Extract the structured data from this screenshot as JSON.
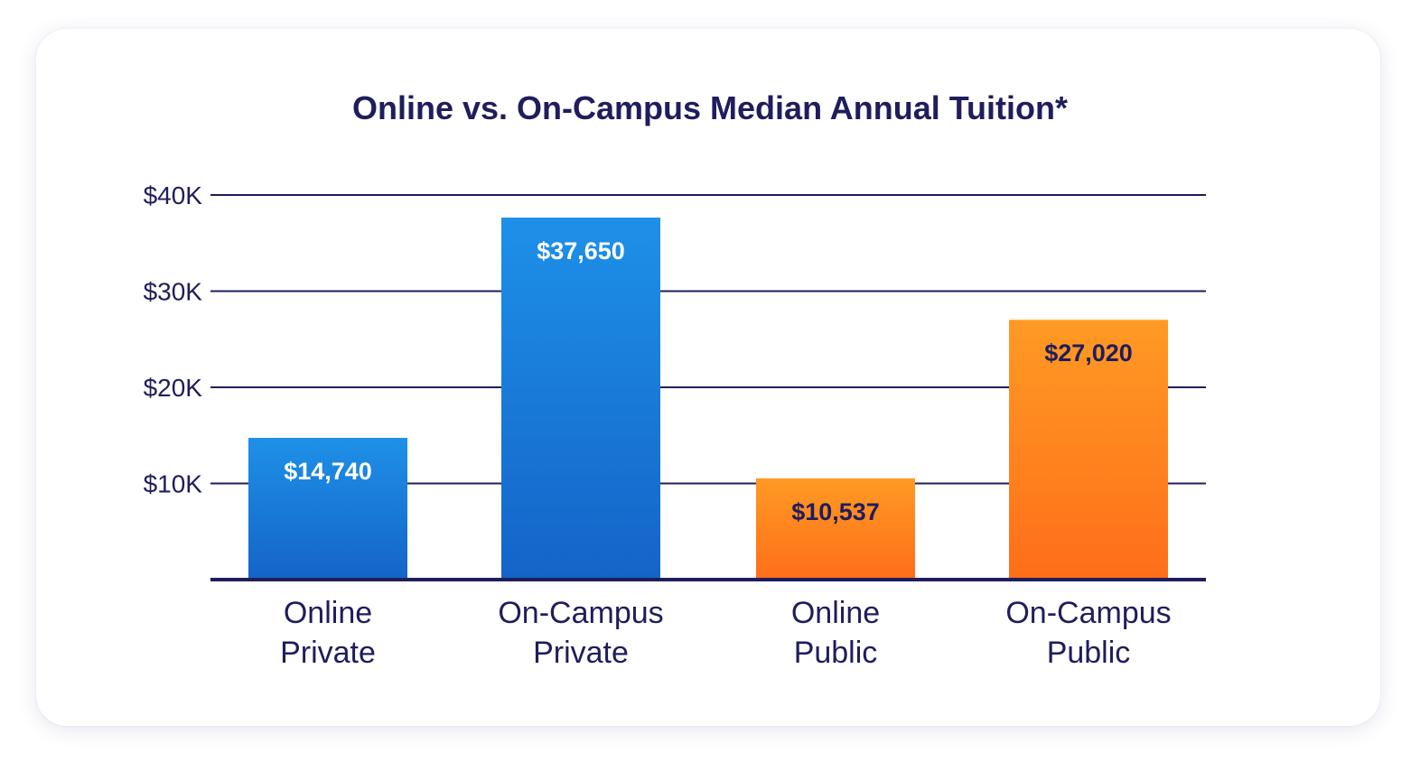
{
  "chart_data": {
    "type": "bar",
    "title": "Online vs. On-Campus Median Annual Tuition*",
    "categories": [
      [
        "Online",
        "Private"
      ],
      [
        "On-Campus",
        "Private"
      ],
      [
        "Online",
        "Public"
      ],
      [
        "On-Campus",
        "Public"
      ]
    ],
    "values": [
      14740,
      37650,
      10537,
      27020
    ],
    "value_labels": [
      "$14,740",
      "$37,650",
      "$10,537",
      "$27,020"
    ],
    "yticks": [
      10000,
      20000,
      30000,
      40000
    ],
    "ytick_labels": [
      "$10K",
      "$20K",
      "$30K",
      "$40K"
    ],
    "ylim": [
      0,
      40000
    ],
    "xlabel": "",
    "ylabel": "",
    "grid": true,
    "bar_colors": {
      "private_top": "#1E90E8",
      "private_bottom": "#1464C8",
      "public_top": "#FF9A24",
      "public_bottom": "#FF6E1A"
    },
    "bar_color_groups": [
      "private",
      "private",
      "public",
      "public"
    ],
    "value_label_colors": [
      "#ffffff",
      "#ffffff",
      "#1f1d5c",
      "#1f1d5c"
    ],
    "text_color": "#1f1d5c",
    "grid_color": "#1f1d5c"
  }
}
